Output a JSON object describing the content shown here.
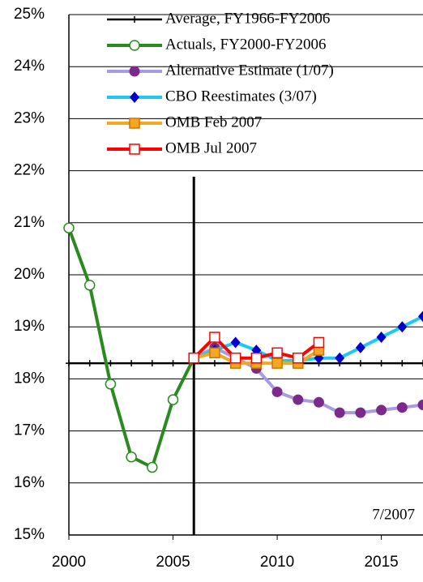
{
  "chart_data": {
    "type": "line",
    "series": [
      {
        "name": "Average, FY1966-FY2006",
        "color": "#000000",
        "marker": "plus",
        "marker_color": "#000000",
        "x": [
          2000,
          2001,
          2002,
          2003,
          2004,
          2005,
          2006,
          2007,
          2008,
          2009,
          2010,
          2011,
          2012,
          2013,
          2014,
          2015,
          2016,
          2017
        ],
        "values": [
          18.3,
          18.3,
          18.3,
          18.3,
          18.3,
          18.3,
          18.3,
          18.3,
          18.3,
          18.3,
          18.3,
          18.3,
          18.3,
          18.3,
          18.3,
          18.3,
          18.3,
          18.3
        ]
      },
      {
        "name": "Actuals, FY2000-FY2006",
        "color": "#2a8a1f",
        "marker": "circle-open",
        "marker_color": "#2a8a1f",
        "x": [
          2000,
          2001,
          2002,
          2003,
          2004,
          2005,
          2006
        ],
        "values": [
          20.9,
          19.8,
          17.9,
          16.5,
          16.3,
          17.6,
          18.4
        ]
      },
      {
        "name": "Alternative Estimate (1/07)",
        "color": "#a99be0",
        "marker": "circle",
        "marker_color": "#7b2a8c",
        "x": [
          2006,
          2007,
          2008,
          2009,
          2010,
          2011,
          2012,
          2013,
          2014,
          2015,
          2016,
          2017
        ],
        "values": [
          18.4,
          18.6,
          18.4,
          18.2,
          17.75,
          17.6,
          17.55,
          17.35,
          17.35,
          17.4,
          17.45,
          17.5
        ]
      },
      {
        "name": "CBO Reestimates (3/07)",
        "color": "#1ec8f0",
        "marker": "diamond",
        "marker_color": "#0000cc",
        "x": [
          2006,
          2007,
          2008,
          2009,
          2010,
          2011,
          2012,
          2013,
          2014,
          2015,
          2016,
          2017
        ],
        "values": [
          18.4,
          18.55,
          18.7,
          18.55,
          18.35,
          18.35,
          18.4,
          18.4,
          18.6,
          18.8,
          19.0,
          19.2
        ]
      },
      {
        "name": "OMB Feb 2007",
        "color": "#f5a623",
        "marker": "square",
        "marker_color": "#c87800",
        "x": [
          2006,
          2007,
          2008,
          2009,
          2010,
          2011,
          2012
        ],
        "values": [
          18.4,
          18.5,
          18.3,
          18.3,
          18.3,
          18.3,
          18.55
        ]
      },
      {
        "name": "OMB Jul 2007",
        "color": "#ff0000",
        "marker": "square-open",
        "marker_color": "#ff0000",
        "x": [
          2006,
          2007,
          2008,
          2009,
          2010,
          2011,
          2012
        ],
        "values": [
          18.4,
          18.8,
          18.4,
          18.4,
          18.5,
          18.4,
          18.7
        ]
      }
    ],
    "xlim": [
      2000,
      2017
    ],
    "xticks": [
      2000,
      2005,
      2010,
      2015
    ],
    "ylim": [
      15,
      25
    ],
    "yticks": [
      {
        "value": 15,
        "label": "15%"
      },
      {
        "value": 16,
        "label": "16%"
      },
      {
        "value": 17,
        "label": "17%"
      },
      {
        "value": 18,
        "label": "18%"
      },
      {
        "value": 19,
        "label": "19%"
      },
      {
        "value": 20,
        "label": "20%"
      },
      {
        "value": 21,
        "label": "21%"
      },
      {
        "value": 22,
        "label": "22%"
      },
      {
        "value": 23,
        "label": "23%"
      },
      {
        "value": 24,
        "label": "24%"
      },
      {
        "value": 25,
        "label": "25%"
      }
    ],
    "vline": 2006,
    "annotation": "7/2007",
    "grid": true
  }
}
